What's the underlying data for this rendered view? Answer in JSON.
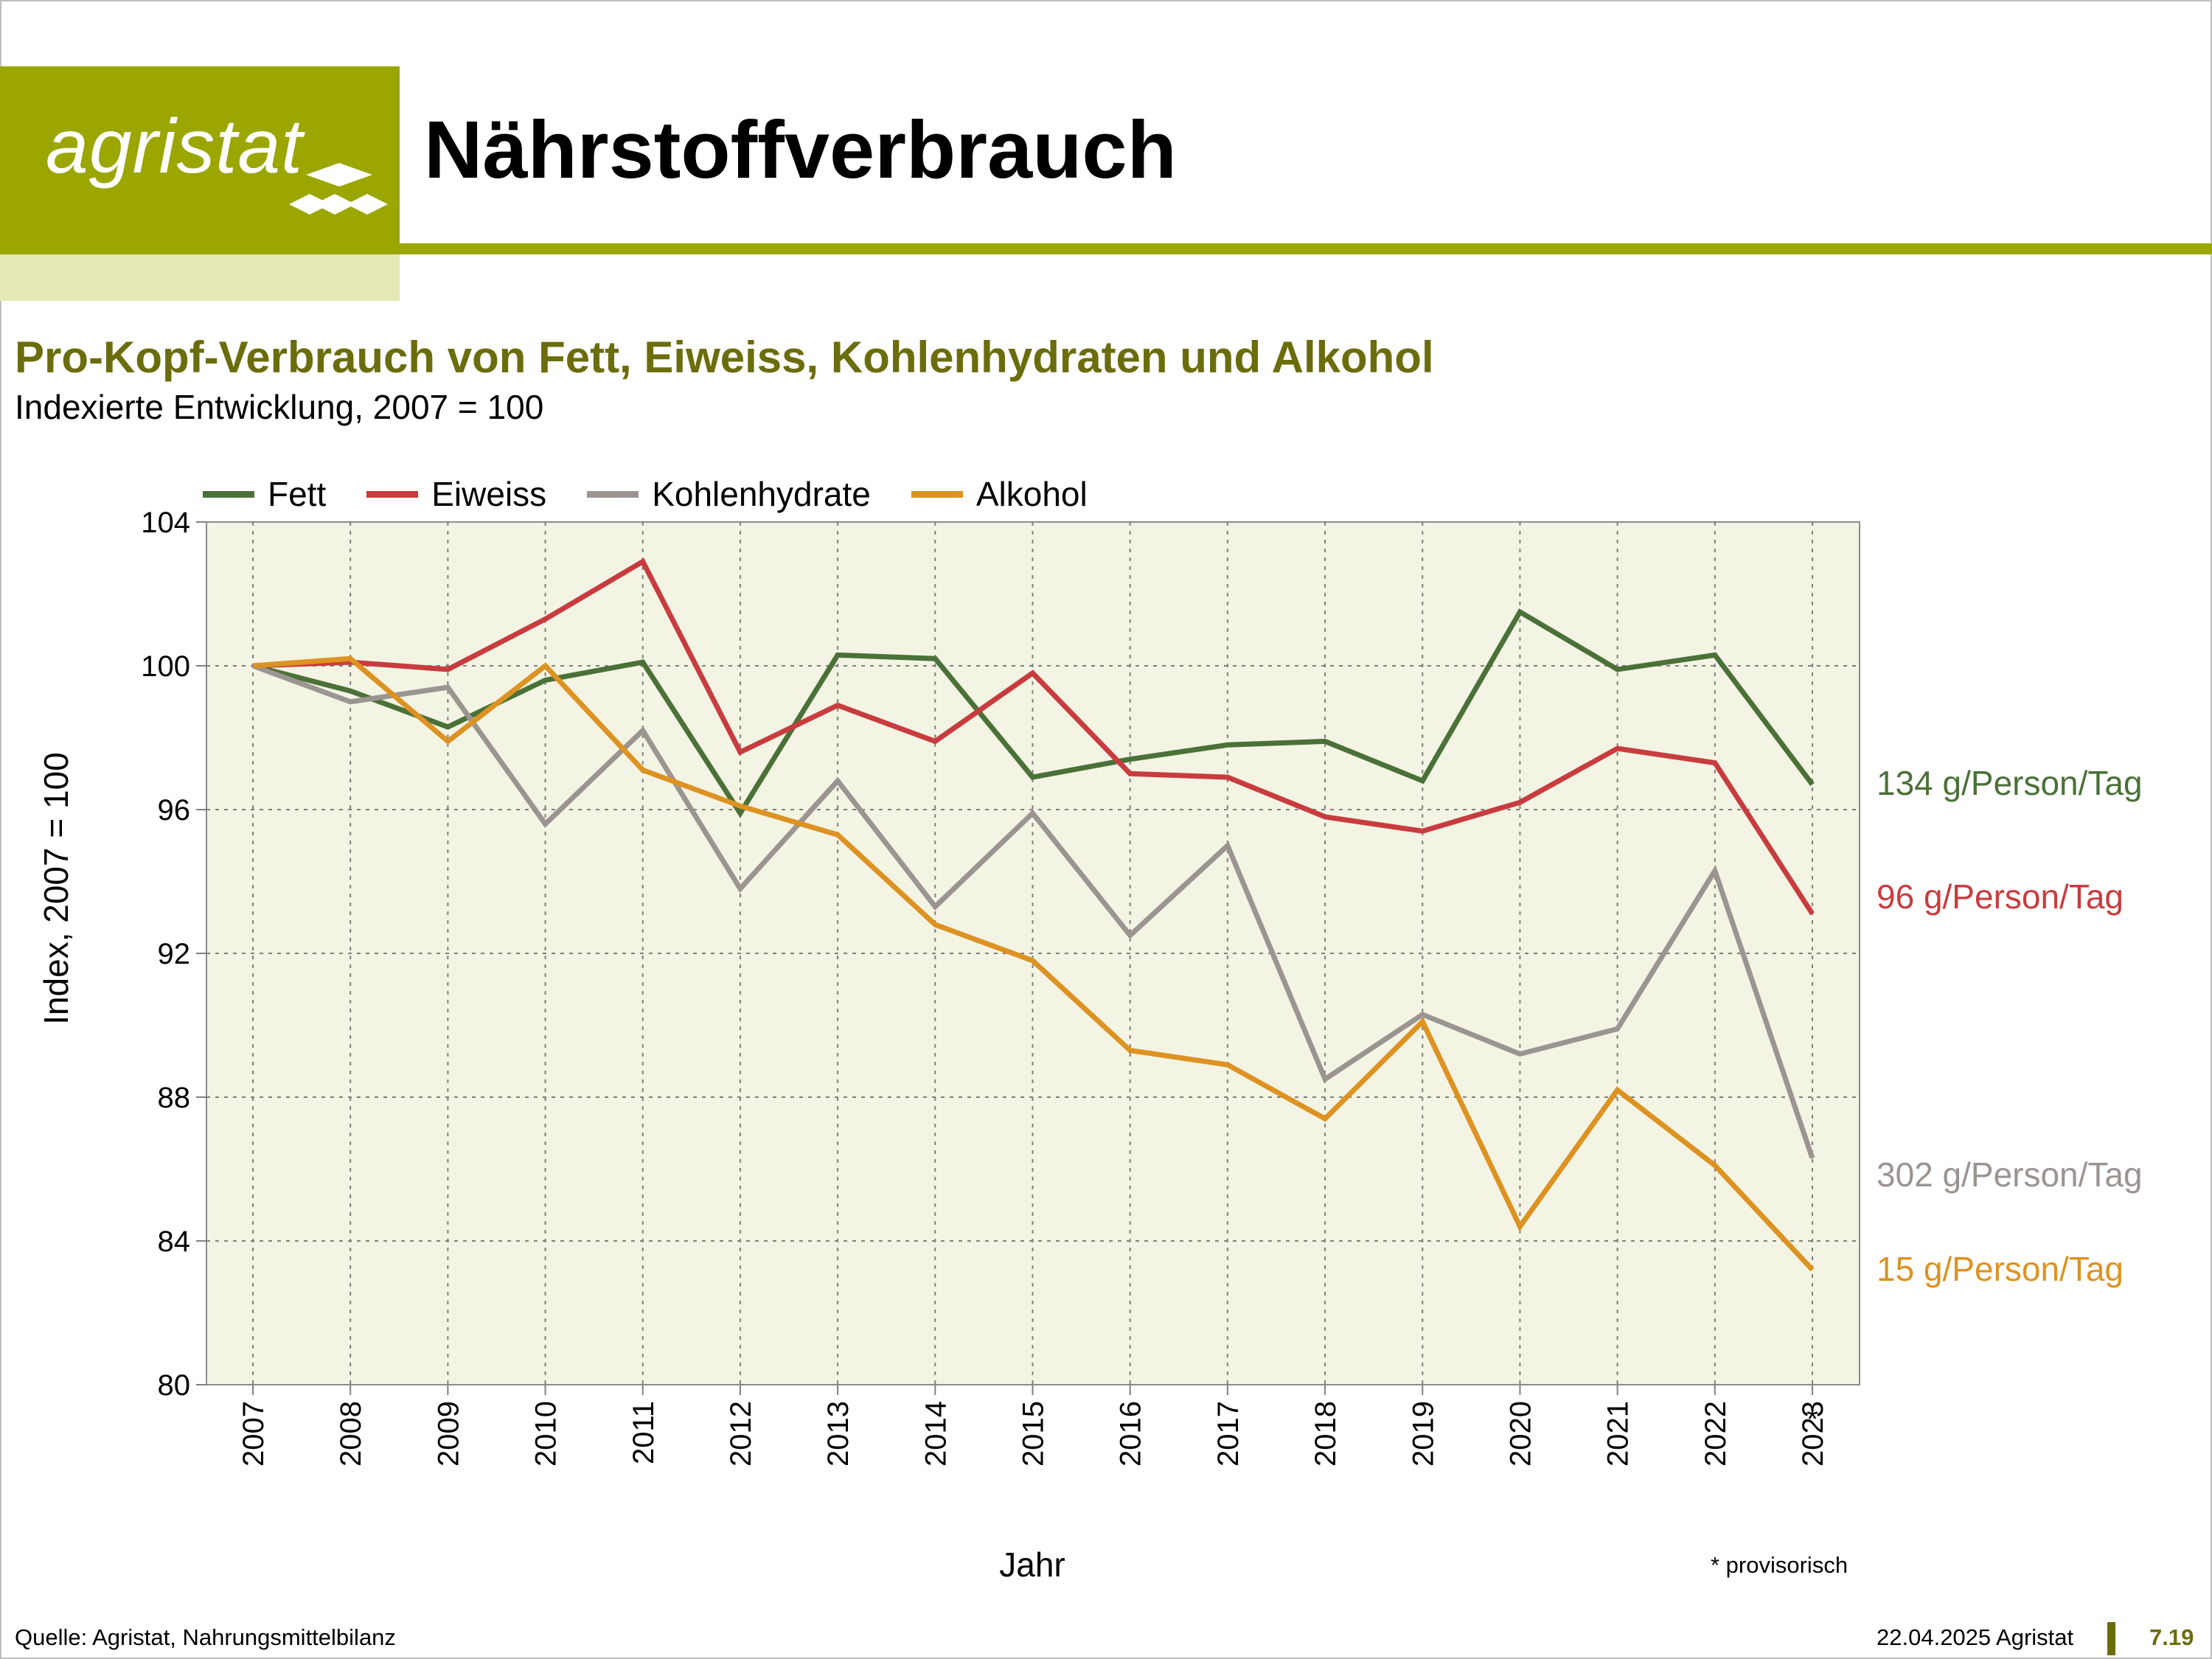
{
  "header": {
    "logo_text": "agristat",
    "page_title": "Nährstoffverbrauch"
  },
  "colors": {
    "brand_olive": "#9ba600",
    "brand_light": "#e5e8b5",
    "plot_bg": "#f3f4e3",
    "fett": "#4a7138",
    "eiweiss": "#c83c3f",
    "kohlenhydrate": "#9b9491",
    "alkohol": "#dd9221"
  },
  "chart_data": {
    "type": "line",
    "title": "Pro-Kopf-Verbrauch von Fett, Eiweiss, Kohlenhydraten und Alkohol",
    "subtitle": "Indexierte Entwicklung, 2007 = 100",
    "xlabel": "Jahr",
    "ylabel": "Index, 2007 = 100",
    "ylim": [
      80,
      104
    ],
    "yticks": [
      "80",
      "84",
      "88",
      "92",
      "96",
      "100",
      "104"
    ],
    "grid": true,
    "legend_position": "top",
    "x": [
      "2007",
      "2008",
      "2009",
      "2010",
      "2011",
      "2012",
      "2013",
      "2014",
      "2015",
      "2016",
      "2017",
      "2018",
      "2019",
      "2020",
      "2021",
      "2022",
      "2023"
    ],
    "x_markers": {
      "2023": "*"
    },
    "series": [
      {
        "name": "Fett",
        "color": "#4a7138",
        "end_label": "134 g/Person/Tag",
        "values": [
          100,
          99.3,
          98.3,
          99.6,
          100.1,
          95.9,
          100.3,
          100.2,
          96.9,
          97.4,
          97.8,
          97.9,
          96.8,
          101.5,
          99.9,
          100.3,
          96.7
        ]
      },
      {
        "name": "Eiweiss",
        "color": "#c83c3f",
        "end_label": "96 g/Person/Tag",
        "values": [
          100,
          100.1,
          99.9,
          101.3,
          102.9,
          97.6,
          98.9,
          97.9,
          99.8,
          97.0,
          96.9,
          95.8,
          95.4,
          96.2,
          97.7,
          97.3,
          93.1
        ]
      },
      {
        "name": "Kohlenhydrate",
        "color": "#9b9491",
        "end_label": "302 g/Person/Tag",
        "values": [
          100,
          99.0,
          99.4,
          95.6,
          98.2,
          93.8,
          96.8,
          93.3,
          95.9,
          92.5,
          95.0,
          88.5,
          90.3,
          89.2,
          89.9,
          94.3,
          86.3
        ]
      },
      {
        "name": "Alkohol",
        "color": "#dd9221",
        "end_label": "15 g/Person/Tag",
        "values": [
          100,
          100.2,
          97.9,
          100.0,
          97.1,
          96.1,
          95.3,
          92.8,
          91.8,
          89.3,
          88.9,
          87.4,
          90.1,
          84.4,
          88.2,
          86.1,
          83.2
        ]
      }
    ],
    "note": "* provisorisch"
  },
  "footer": {
    "source": "Quelle: Agristat, Nahrungsmittelbilanz",
    "date": "22.04.2025 Agristat",
    "page": "7.19"
  }
}
